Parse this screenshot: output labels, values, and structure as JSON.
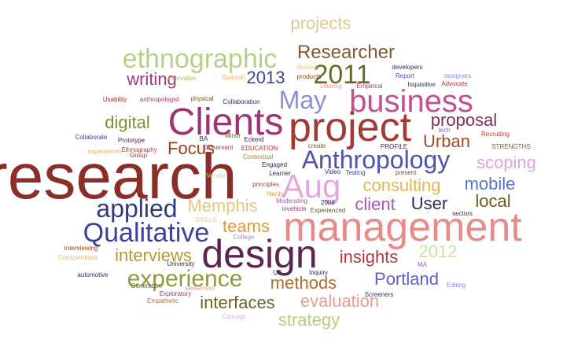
{
  "words": [
    {
      "text": "research",
      "color": "#8b2e2a"
    },
    {
      "text": "management",
      "color": "#e88a8a"
    },
    {
      "text": "project",
      "color": "#a33a36"
    },
    {
      "text": "design",
      "color": "#5a2650"
    },
    {
      "text": "Clients",
      "color": "#9b3573"
    },
    {
      "text": "business",
      "color": "#c4508e"
    },
    {
      "text": "Aug",
      "color": "#e2a8dc"
    },
    {
      "text": "Anthropology",
      "color": "#4e52b0"
    },
    {
      "text": "Qualitative",
      "color": "#3f3f9a"
    },
    {
      "text": "experience",
      "color": "#8f9a3c"
    },
    {
      "text": "applied",
      "color": "#2f3d7d"
    },
    {
      "text": "ethnographic",
      "color": "#b8cf8a"
    },
    {
      "text": "2011",
      "color": "#6a6a24"
    },
    {
      "text": "May",
      "color": "#8b8ed6"
    },
    {
      "text": "Researcher",
      "color": "#7d5b2d"
    },
    {
      "text": "Memphis",
      "color": "#e7c77f"
    },
    {
      "text": "projects",
      "color": "#e6c58f"
    },
    {
      "text": "interfaces",
      "color": "#6e6326"
    },
    {
      "text": "interviews",
      "color": "#b49a34"
    },
    {
      "text": "evaluation",
      "color": "#e59b97"
    },
    {
      "text": "strategy",
      "color": "#b9cf76"
    },
    {
      "text": "methods",
      "color": "#b06e2c"
    },
    {
      "text": "Portland",
      "color": "#5b61c8"
    },
    {
      "text": "insights",
      "color": "#b03d3c"
    },
    {
      "text": "consulting",
      "color": "#e6b44f"
    },
    {
      "text": "Focus",
      "color": "#9b3f18"
    },
    {
      "text": "scoping",
      "color": "#e3a3d5"
    },
    {
      "text": "proposal",
      "color": "#7b2e60"
    },
    {
      "text": "Urban",
      "color": "#9c4a29"
    },
    {
      "text": "digital",
      "color": "#7f8f2d"
    },
    {
      "text": "writing",
      "color": "#a03978"
    },
    {
      "text": "teams",
      "color": "#e09a3d"
    },
    {
      "text": "client",
      "color": "#a658b8"
    },
    {
      "text": "User",
      "color": "#2e2e52"
    },
    {
      "text": "local",
      "color": "#6e5a1e"
    },
    {
      "text": "mobile",
      "color": "#5a73c8"
    },
    {
      "text": "2013",
      "color": "#3e4493"
    },
    {
      "text": "2012",
      "color": "#cfe0a0"
    },
    {
      "text": "innovative",
      "color": "#b3c45a"
    },
    {
      "text": "Spanish",
      "color": "#e6b45f"
    },
    {
      "text": "desktop",
      "color": "#e6c58f"
    },
    {
      "text": "products",
      "color": "#9b3f18"
    },
    {
      "text": "developers",
      "color": "#2e2e52"
    },
    {
      "text": "Empirical",
      "color": "#9b3573"
    },
    {
      "text": "Lifelong",
      "color": "#e59b97"
    },
    {
      "text": "Report",
      "color": "#4e52b0"
    },
    {
      "text": "designers",
      "color": "#8b8ed6"
    },
    {
      "text": "Inquisitive",
      "color": "#2e2e52"
    },
    {
      "text": "Advocate",
      "color": "#a33a36"
    },
    {
      "text": "tech",
      "color": "#a658b8"
    },
    {
      "text": "Recruiting",
      "color": "#b03d3c"
    },
    {
      "text": "STRENGTHS",
      "color": "#7d5b2d"
    },
    {
      "text": "PROFILE",
      "color": "#4e2450"
    },
    {
      "text": "present",
      "color": "#9b3f18"
    },
    {
      "text": "create",
      "color": "#6e6326"
    },
    {
      "text": "Testing",
      "color": "#3f3f9a"
    },
    {
      "text": "Video",
      "color": "#2e2e52"
    },
    {
      "text": "Usability",
      "color": "#8b2e2a"
    },
    {
      "text": "anthropologist",
      "color": "#a03978"
    },
    {
      "text": "physical",
      "color": "#6e5a1e"
    },
    {
      "text": "Collaboration",
      "color": "#2e2e52"
    },
    {
      "text": "Eckerd",
      "color": "#2e2e52"
    },
    {
      "text": "Collaborate",
      "color": "#3f3f9a"
    },
    {
      "text": "Prototype",
      "color": "#4e2450"
    },
    {
      "text": "BA",
      "color": "#2e2e52"
    },
    {
      "text": "Minor",
      "color": "#6e5a1e"
    },
    {
      "text": "EDUCATION",
      "color": "#b03d3c"
    },
    {
      "text": "Observant",
      "color": "#a03978"
    },
    {
      "text": "Contextual",
      "color": "#9b8a3a"
    },
    {
      "text": "Ethnography",
      "color": "#b03d3c"
    },
    {
      "text": "experiences",
      "color": "#e6b45f"
    },
    {
      "text": "Group",
      "color": "#9b3f18"
    },
    {
      "text": "Vendor",
      "color": "#e6c58f"
    },
    {
      "text": "Engaged",
      "color": "#2e2e52"
    },
    {
      "text": "Learner",
      "color": "#2e2e52"
    },
    {
      "text": "principles",
      "color": "#b03d3c"
    },
    {
      "text": "Nerdy",
      "color": "#e09a3d"
    },
    {
      "text": "Moderating",
      "color": "#a658b8"
    },
    {
      "text": "invehicle",
      "color": "#a03978"
    },
    {
      "text": "2008",
      "color": "#2e2e52"
    },
    {
      "text": "Experienced",
      "color": "#6e5a1e"
    },
    {
      "text": "sectors",
      "color": "#4e2450"
    },
    {
      "text": "SKILLS",
      "color": "#e6c58f"
    },
    {
      "text": "College",
      "color": "#8b8ed6"
    },
    {
      "text": "Interviewing",
      "color": "#9b3f18"
    },
    {
      "text": "Conscientious",
      "color": "#e6b45f"
    },
    {
      "text": "University",
      "color": "#2e2e52"
    },
    {
      "text": "automotive",
      "color": "#2e2e52"
    },
    {
      "text": "Generation",
      "color": "#6e5a1e"
    },
    {
      "text": "UX",
      "color": "#2e2e52"
    },
    {
      "text": "Inquiry",
      "color": "#2e2e52"
    },
    {
      "text": "MA",
      "color": "#a658b8"
    },
    {
      "text": "Editing",
      "color": "#8b8ed6"
    },
    {
      "text": "Exploratory",
      "color": "#a03978"
    },
    {
      "text": "wellversed",
      "color": "#e59b97"
    },
    {
      "text": "Empathetic",
      "color": "#b06e2c"
    },
    {
      "text": "Screeners",
      "color": "#2e2e52"
    },
    {
      "text": "Concept",
      "color": "#e2a8dc"
    }
  ]
}
